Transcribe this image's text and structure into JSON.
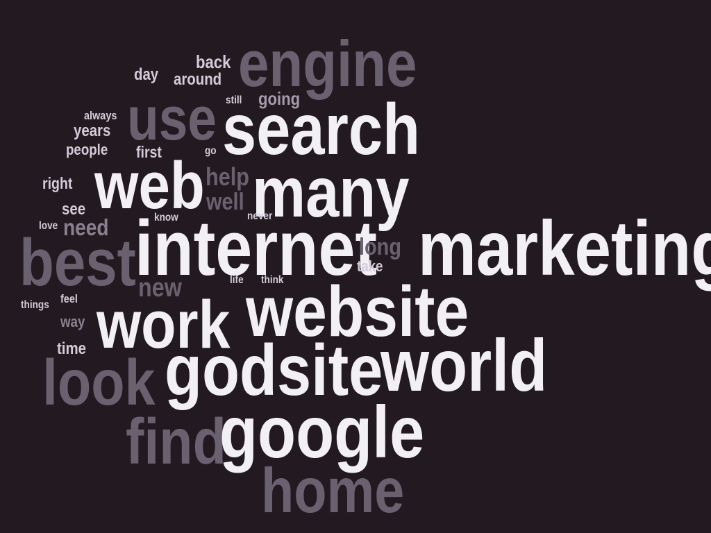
{
  "colors": {
    "background": "#231a21",
    "bright": "#f2f0f4",
    "light": "#d3cbd9",
    "mid": "#a59bab",
    "dim": "#8a8090",
    "dark": "#696170"
  },
  "words": [
    {
      "text": "engine",
      "tone": "dark"
    },
    {
      "text": "back",
      "tone": "light"
    },
    {
      "text": "day",
      "tone": "light"
    },
    {
      "text": "around",
      "tone": "light"
    },
    {
      "text": "still",
      "tone": "light"
    },
    {
      "text": "going",
      "tone": "mid"
    },
    {
      "text": "use",
      "tone": "dark"
    },
    {
      "text": "search",
      "tone": "bright"
    },
    {
      "text": "always",
      "tone": "light"
    },
    {
      "text": "years",
      "tone": "light"
    },
    {
      "text": "people",
      "tone": "light"
    },
    {
      "text": "first",
      "tone": "light"
    },
    {
      "text": "go",
      "tone": "light"
    },
    {
      "text": "web",
      "tone": "bright"
    },
    {
      "text": "help",
      "tone": "dark"
    },
    {
      "text": "many",
      "tone": "bright"
    },
    {
      "text": "right",
      "tone": "light"
    },
    {
      "text": "well",
      "tone": "dark"
    },
    {
      "text": "see",
      "tone": "light"
    },
    {
      "text": "know",
      "tone": "light"
    },
    {
      "text": "never",
      "tone": "light"
    },
    {
      "text": "love",
      "tone": "light"
    },
    {
      "text": "need",
      "tone": "dim"
    },
    {
      "text": "internet",
      "tone": "bright"
    },
    {
      "text": "marketing",
      "tone": "bright"
    },
    {
      "text": "best",
      "tone": "dark"
    },
    {
      "text": "long",
      "tone": "dark"
    },
    {
      "text": "take",
      "tone": "light"
    },
    {
      "text": "new",
      "tone": "dark"
    },
    {
      "text": "life",
      "tone": "light"
    },
    {
      "text": "think",
      "tone": "light"
    },
    {
      "text": "things",
      "tone": "light"
    },
    {
      "text": "feel",
      "tone": "light"
    },
    {
      "text": "website",
      "tone": "bright"
    },
    {
      "text": "way",
      "tone": "dim"
    },
    {
      "text": "work",
      "tone": "bright"
    },
    {
      "text": "time",
      "tone": "light"
    },
    {
      "text": "godsite",
      "tone": "bright"
    },
    {
      "text": "world",
      "tone": "bright"
    },
    {
      "text": "look",
      "tone": "dark"
    },
    {
      "text": "find",
      "tone": "dark"
    },
    {
      "text": "google",
      "tone": "bright"
    },
    {
      "text": "home",
      "tone": "dark"
    }
  ]
}
